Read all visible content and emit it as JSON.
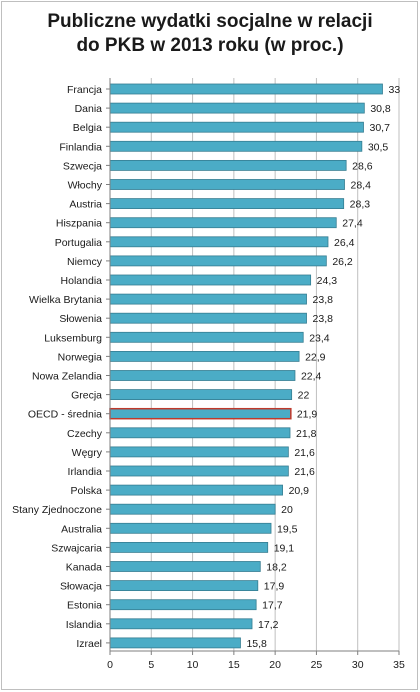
{
  "chart_data": {
    "type": "bar",
    "orientation": "horizontal",
    "title_lines": [
      "Publiczne wydatki socjalne w relacji",
      "do PKB w 2013 roku (w proc.)"
    ],
    "categories": [
      "Francja",
      "Dania",
      "Belgia",
      "Finlandia",
      "Szwecja",
      "Włochy",
      "Austria",
      "Hiszpania",
      "Portugalia",
      "Niemcy",
      "Holandia",
      "Wielka Brytania",
      "Słowenia",
      "Luksemburg",
      "Norwegia",
      "Nowa Zelandia",
      "Grecja",
      "OECD - średnia",
      "Czechy",
      "Węgry",
      "Irlandia",
      "Polska",
      "Stany Zjednoczone",
      "Australia",
      "Szwajcaria",
      "Kanada",
      "Słowacja",
      "Estonia",
      "Islandia",
      "Izrael"
    ],
    "values": [
      33,
      30.8,
      30.7,
      30.5,
      28.6,
      28.4,
      28.3,
      27.4,
      26.4,
      26.2,
      24.3,
      23.8,
      23.8,
      23.4,
      22.9,
      22.4,
      22,
      21.9,
      21.8,
      21.6,
      21.6,
      20.9,
      20,
      19.5,
      19.1,
      18.2,
      17.9,
      17.7,
      17.2,
      15.8
    ],
    "value_labels": [
      "33",
      "30,8",
      "30,7",
      "30,5",
      "28,6",
      "28,4",
      "28,3",
      "27,4",
      "26,4",
      "26,2",
      "24,3",
      "23,8",
      "23,8",
      "23,4",
      "22,9",
      "22,4",
      "22",
      "21,9",
      "21,8",
      "21,6",
      "21,6",
      "20,9",
      "20",
      "19,5",
      "19,1",
      "18,2",
      "17,9",
      "17,7",
      "17,2",
      "15,8"
    ],
    "highlight_category": "OECD - średnia",
    "xlim": [
      0,
      35
    ],
    "xticks": [
      "0",
      "5",
      "10",
      "15",
      "20",
      "25",
      "30",
      "35"
    ],
    "grid": "vertical",
    "colors": {
      "bar_fill": "#4bacc6",
      "bar_stroke": "#357d91",
      "highlight_stroke": "#c0392b",
      "grid": "#bfbfbf",
      "axis": "#7f7f7f"
    }
  }
}
